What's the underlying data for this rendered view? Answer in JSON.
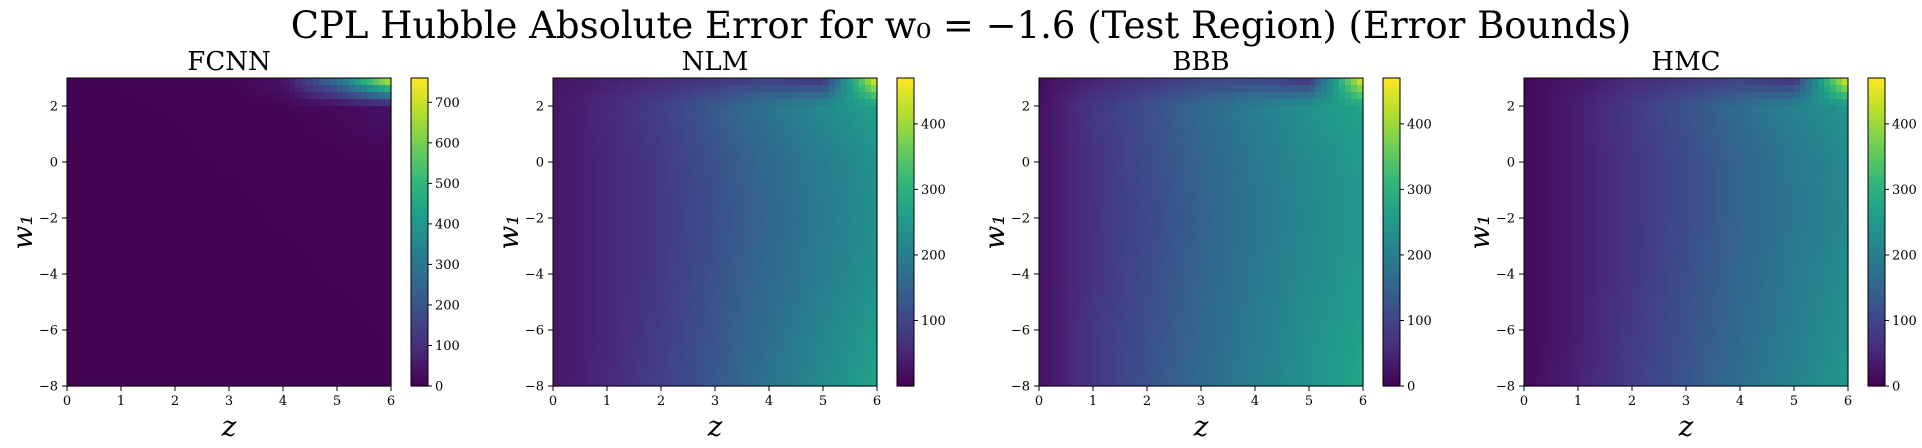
{
  "figure": {
    "title": "CPL Hubble Absolute Error for w₀ = −1.6 (Test Region) (Error Bounds)"
  },
  "colormap": {
    "name": "viridis",
    "stops": [
      "#440154",
      "#482878",
      "#3e4989",
      "#31688e",
      "#26828e",
      "#1f9e89",
      "#35b779",
      "#6ece58",
      "#b5de2b",
      "#fde725"
    ]
  },
  "chart_data": [
    {
      "type": "heatmap",
      "title": "FCNN",
      "xlabel": "z",
      "ylabel": "w₁",
      "xlim": [
        0,
        6
      ],
      "ylim": [
        -8,
        3
      ],
      "x_ticks": [
        "0",
        "1",
        "2",
        "3",
        "4",
        "5",
        "6"
      ],
      "y_ticks": [
        "2",
        "0",
        "−2",
        "−4",
        "−6",
        "−8"
      ],
      "colorbar": {
        "range": [
          0,
          760
        ],
        "ticks": [
          "0",
          "100",
          "200",
          "300",
          "400",
          "500",
          "600",
          "700"
        ]
      },
      "grid": {
        "z": [
          0,
          1,
          2,
          3,
          4,
          5,
          6
        ],
        "w1": [
          3,
          2,
          0,
          -2,
          -4,
          -6,
          -8
        ],
        "values": [
          [
            5,
            6,
            8,
            12,
            40,
            300,
            760
          ],
          [
            4,
            5,
            6,
            8,
            10,
            20,
            40
          ],
          [
            3,
            4,
            5,
            6,
            7,
            9,
            12
          ],
          [
            3,
            3,
            4,
            5,
            6,
            7,
            8
          ],
          [
            2,
            3,
            4,
            4,
            5,
            6,
            7
          ],
          [
            2,
            3,
            3,
            4,
            5,
            5,
            6
          ],
          [
            2,
            2,
            3,
            4,
            4,
            5,
            6
          ]
        ]
      }
    },
    {
      "type": "heatmap",
      "title": "NLM",
      "xlabel": "z",
      "ylabel": "w₁",
      "xlim": [
        0,
        6
      ],
      "ylim": [
        -8,
        3
      ],
      "x_ticks": [
        "0",
        "1",
        "2",
        "3",
        "4",
        "5",
        "6"
      ],
      "y_ticks": [
        "2",
        "0",
        "−2",
        "−4",
        "−6",
        "−8"
      ],
      "colorbar": {
        "range": [
          0,
          470
        ],
        "ticks": [
          "100",
          "200",
          "300",
          "400"
        ]
      },
      "grid": {
        "z": [
          0,
          1,
          2,
          3,
          4,
          5,
          6
        ],
        "w1": [
          3,
          2,
          0,
          -2,
          -4,
          -6,
          -8
        ],
        "values": [
          [
            25,
            40,
            55,
            70,
            90,
            60,
            470
          ],
          [
            30,
            55,
            90,
            135,
            180,
            225,
            265
          ],
          [
            30,
            50,
            80,
            120,
            160,
            200,
            240
          ],
          [
            30,
            50,
            80,
            115,
            155,
            195,
            235
          ],
          [
            30,
            50,
            80,
            120,
            160,
            200,
            240
          ],
          [
            30,
            50,
            85,
            125,
            170,
            215,
            255
          ],
          [
            30,
            55,
            90,
            130,
            180,
            225,
            270
          ]
        ]
      }
    },
    {
      "type": "heatmap",
      "title": "BBB",
      "xlabel": "z",
      "ylabel": "w₁",
      "xlim": [
        0,
        6
      ],
      "ylim": [
        -8,
        3
      ],
      "x_ticks": [
        "0",
        "1",
        "2",
        "3",
        "4",
        "5",
        "6"
      ],
      "y_ticks": [
        "2",
        "0",
        "−2",
        "−4",
        "−6",
        "−8"
      ],
      "colorbar": {
        "range": [
          0,
          470
        ],
        "ticks": [
          "0",
          "100",
          "200",
          "300",
          "400"
        ]
      },
      "grid": {
        "z": [
          0,
          1,
          2,
          3,
          4,
          5,
          6
        ],
        "w1": [
          3,
          2,
          0,
          -2,
          -4,
          -6,
          -8
        ],
        "values": [
          [
            15,
            45,
            70,
            90,
            100,
            60,
            470
          ],
          [
            20,
            75,
            115,
            160,
            200,
            240,
            270
          ],
          [
            20,
            70,
            110,
            150,
            190,
            225,
            255
          ],
          [
            20,
            70,
            105,
            145,
            185,
            220,
            250
          ],
          [
            20,
            70,
            110,
            150,
            190,
            225,
            255
          ],
          [
            20,
            75,
            115,
            155,
            195,
            235,
            265
          ],
          [
            20,
            75,
            120,
            160,
            200,
            240,
            275
          ]
        ]
      }
    },
    {
      "type": "heatmap",
      "title": "HMC",
      "xlabel": "z",
      "ylabel": "w₁",
      "xlim": [
        0,
        6
      ],
      "ylim": [
        -8,
        3
      ],
      "x_ticks": [
        "0",
        "1",
        "2",
        "3",
        "4",
        "5",
        "6"
      ],
      "y_ticks": [
        "2",
        "0",
        "−2",
        "−4",
        "−6",
        "−8"
      ],
      "colorbar": {
        "range": [
          0,
          470
        ],
        "ticks": [
          "0",
          "100",
          "200",
          "300",
          "400"
        ]
      },
      "grid": {
        "z": [
          0,
          1,
          2,
          3,
          4,
          5,
          6
        ],
        "w1": [
          3,
          2,
          0,
          -2,
          -4,
          -6,
          -8
        ],
        "values": [
          [
            10,
            30,
            55,
            75,
            90,
            60,
            470
          ],
          [
            10,
            40,
            80,
            120,
            165,
            210,
            245
          ],
          [
            10,
            40,
            75,
            110,
            150,
            190,
            225
          ],
          [
            10,
            40,
            75,
            110,
            150,
            185,
            220
          ],
          [
            10,
            40,
            75,
            115,
            155,
            195,
            230
          ],
          [
            10,
            40,
            80,
            120,
            160,
            200,
            240
          ],
          [
            10,
            45,
            85,
            125,
            170,
            210,
            250
          ]
        ]
      }
    }
  ]
}
